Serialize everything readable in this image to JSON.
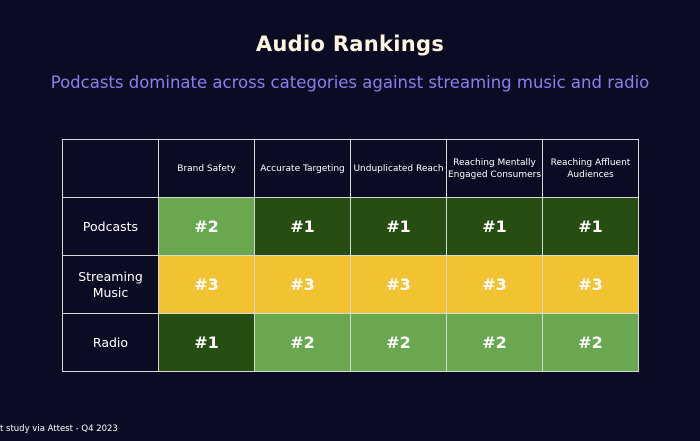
{
  "title": "Audio Rankings",
  "subtitle": "Podcasts dominate across categories against streaming music and radio",
  "footnote": "t study via Attest - Q4 2023",
  "chart_data": {
    "type": "table",
    "columns": [
      "Brand Safety",
      "Accurate Targeting",
      "Unduplicated Reach",
      "Reaching Mentally Engaged Consumers",
      "Reaching Affluent Audiences"
    ],
    "rows": [
      {
        "label": "Podcasts",
        "values": [
          "#2",
          "#1",
          "#1",
          "#1",
          "#1"
        ]
      },
      {
        "label": "Streaming Music",
        "values": [
          "#3",
          "#3",
          "#3",
          "#3",
          "#3"
        ]
      },
      {
        "label": "Radio",
        "values": [
          "#1",
          "#2",
          "#2",
          "#2",
          "#2"
        ]
      }
    ],
    "rank_colors": {
      "#1": "#264d12",
      "#2": "#6aa84f",
      "#3": "#f1c232"
    }
  }
}
